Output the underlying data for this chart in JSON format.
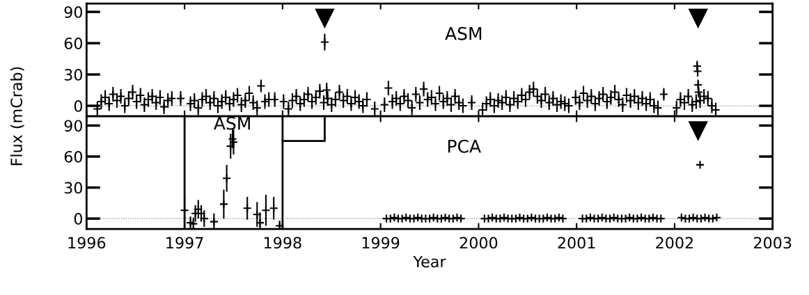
{
  "chart_data": [
    {
      "type": "scatter",
      "title": "ASM",
      "ylabel": "Flux (mCrab)",
      "xlim": [
        1996,
        2003
      ],
      "xticks": [
        1996,
        1997,
        1998,
        1999,
        2000,
        2001,
        2002,
        2003
      ],
      "ylim": [
        -10,
        98
      ],
      "yticks": [
        0,
        30,
        60,
        90
      ],
      "tick_labels": "y",
      "grid": false,
      "legend": false,
      "ref_lines": [
        {
          "axis": "y",
          "value": 0,
          "line_style": "dotted",
          "color": "#808080"
        }
      ],
      "series": [
        {
          "marker": "cross",
          "color": "#000000",
          "x": [
            1996.11,
            1996.15,
            1996.19,
            1996.23,
            1996.27,
            1996.31,
            1996.35,
            1996.39,
            1996.43,
            1996.47,
            1996.51,
            1996.55,
            1996.59,
            1996.63,
            1996.67,
            1996.71,
            1996.75,
            1996.79,
            1996.83,
            1996.87,
            1996.96,
            1997.06,
            1997.1,
            1997.14,
            1997.18,
            1997.22,
            1997.26,
            1997.3,
            1997.34,
            1997.38,
            1997.42,
            1997.46,
            1997.5,
            1997.54,
            1997.58,
            1997.62,
            1997.66,
            1997.7,
            1997.74,
            1997.78,
            1997.82,
            1997.86,
            1997.92,
            1998.01,
            1998.06,
            1998.1,
            1998.14,
            1998.18,
            1998.22,
            1998.26,
            1998.3,
            1998.34,
            1998.38,
            1998.42,
            1998.43,
            1998.45,
            1998.46,
            1998.5,
            1998.54,
            1998.58,
            1998.62,
            1998.66,
            1998.7,
            1998.74,
            1998.78,
            1998.82,
            1998.86,
            1998.94,
            1999.04,
            1999.08,
            1999.12,
            1999.16,
            1999.2,
            1999.24,
            1999.28,
            1999.32,
            1999.36,
            1999.4,
            1999.44,
            1999.48,
            1999.52,
            1999.56,
            1999.6,
            1999.64,
            1999.68,
            1999.72,
            1999.76,
            1999.8,
            1999.84,
            1999.93,
            2000.04,
            2000.08,
            2000.12,
            2000.16,
            2000.2,
            2000.24,
            2000.28,
            2000.32,
            2000.36,
            2000.4,
            2000.44,
            2000.48,
            2000.52,
            2000.56,
            2000.6,
            2000.64,
            2000.68,
            2000.72,
            2000.76,
            2000.8,
            2000.84,
            2000.88,
            2000.92,
            2000.99,
            2001.03,
            2001.07,
            2001.11,
            2001.15,
            2001.19,
            2001.23,
            2001.27,
            2001.31,
            2001.35,
            2001.39,
            2001.43,
            2001.47,
            2001.51,
            2001.55,
            2001.59,
            2001.63,
            2001.67,
            2001.71,
            2001.75,
            2001.79,
            2001.83,
            2001.89,
            2002.02,
            2002.06,
            2002.1,
            2002.14,
            2002.18,
            2002.22,
            2002.23,
            2002.235,
            2002.24,
            2002.245,
            2002.26,
            2002.3,
            2002.34,
            2002.38,
            2002.42
          ],
          "values": [
            -3,
            4,
            8,
            2,
            11,
            5,
            9,
            0,
            7,
            13,
            4,
            10,
            1,
            6,
            9,
            3,
            8,
            -1,
            5,
            7,
            7,
            2,
            5,
            -2,
            6,
            9,
            3,
            7,
            0,
            4,
            8,
            2,
            6,
            10,
            1,
            5,
            12,
            3,
            -2,
            19,
            4,
            6,
            6,
            4,
            -3,
            5,
            9,
            2,
            6,
            11,
            4,
            8,
            14,
            3,
            61,
            15,
            7,
            1,
            6,
            13,
            5,
            9,
            2,
            8,
            4,
            0,
            6,
            -3,
            1,
            17,
            4,
            7,
            2,
            9,
            5,
            -2,
            11,
            3,
            16,
            6,
            8,
            2,
            12,
            4,
            7,
            1,
            9,
            3,
            0,
            3,
            -4,
            2,
            6,
            0,
            5,
            3,
            8,
            1,
            7,
            4,
            10,
            6,
            13,
            16,
            9,
            5,
            11,
            3,
            7,
            1,
            4,
            2,
            0,
            8,
            3,
            12,
            5,
            9,
            2,
            7,
            11,
            4,
            8,
            13,
            6,
            1,
            10,
            5,
            9,
            3,
            7,
            2,
            6,
            0,
            -2,
            11,
            -2,
            6,
            3,
            9,
            1,
            4,
            38,
            33,
            20,
            13,
            5,
            9,
            7,
            0,
            -4
          ],
          "errors": [
            7,
            7,
            7,
            7,
            7,
            7,
            7,
            7,
            7,
            7,
            7,
            7,
            7,
            7,
            7,
            7,
            7,
            7,
            7,
            7,
            7,
            7,
            7,
            7,
            7,
            7,
            7,
            7,
            7,
            7,
            7,
            7,
            7,
            7,
            7,
            7,
            7,
            7,
            7,
            6,
            7,
            7,
            7,
            7,
            7,
            7,
            7,
            7,
            7,
            7,
            7,
            7,
            7,
            7,
            8,
            7,
            7,
            7,
            7,
            7,
            7,
            7,
            7,
            7,
            7,
            7,
            7,
            7,
            7,
            7,
            7,
            7,
            7,
            7,
            7,
            7,
            7,
            7,
            7,
            7,
            7,
            7,
            7,
            7,
            7,
            7,
            7,
            7,
            7,
            7,
            7,
            7,
            7,
            7,
            7,
            7,
            7,
            7,
            7,
            7,
            7,
            7,
            7,
            7,
            7,
            7,
            7,
            7,
            7,
            7,
            7,
            7,
            7,
            7,
            7,
            7,
            7,
            7,
            7,
            7,
            7,
            7,
            7,
            7,
            7,
            7,
            7,
            7,
            7,
            7,
            7,
            7,
            7,
            7,
            7,
            6,
            7,
            7,
            7,
            7,
            7,
            7,
            5,
            5,
            5,
            5,
            7,
            7,
            7,
            7,
            7
          ]
        },
        {
          "marker": "triangle",
          "color": "#000000",
          "x": [
            1998.43,
            2002.24
          ],
          "values": [
            84,
            84
          ]
        }
      ]
    },
    {
      "type": "scatter",
      "title": "PCA",
      "xlabel": "Year",
      "xlim": [
        1996,
        2003
      ],
      "xticks": [
        1996,
        1997,
        1998,
        1999,
        2000,
        2001,
        2002,
        2003
      ],
      "ylim": [
        -10,
        99
      ],
      "yticks": [
        0,
        30,
        60,
        90
      ],
      "grid": false,
      "legend": false,
      "ref_lines": [
        {
          "axis": "y",
          "value": 0,
          "line_style": "dotted",
          "color": "#808080"
        },
        {
          "axis": "x",
          "value": 1997,
          "color": "#000000",
          "line_style": "solid"
        },
        {
          "axis": "x",
          "value": 1998,
          "color": "#000000",
          "line_style": "solid"
        }
      ],
      "series": [
        {
          "marker": "cross",
          "color": "#000000",
          "x": [
            1999.06,
            1999.1,
            1999.14,
            1999.18,
            1999.22,
            1999.26,
            1999.3,
            1999.34,
            1999.38,
            1999.42,
            1999.46,
            1999.5,
            1999.54,
            1999.58,
            1999.62,
            1999.66,
            1999.7,
            1999.74,
            1999.78,
            1999.82,
            2000.06,
            2000.1,
            2000.14,
            2000.18,
            2000.22,
            2000.26,
            2000.3,
            2000.34,
            2000.38,
            2000.42,
            2000.46,
            2000.5,
            2000.54,
            2000.58,
            2000.62,
            2000.66,
            2000.7,
            2000.74,
            2000.78,
            2000.82,
            2000.86,
            2001.06,
            2001.1,
            2001.14,
            2001.18,
            2001.22,
            2001.26,
            2001.3,
            2001.34,
            2001.38,
            2001.42,
            2001.46,
            2001.5,
            2001.54,
            2001.58,
            2001.62,
            2001.66,
            2001.7,
            2001.74,
            2001.78,
            2001.82,
            2001.86,
            2002.07,
            2002.11,
            2002.15,
            2002.19,
            2002.23,
            2002.26,
            2002.27,
            2002.31,
            2002.35,
            2002.39,
            2002.43
          ],
          "values": [
            0,
            0,
            1,
            0,
            0,
            1,
            0,
            0,
            1,
            0,
            0,
            0,
            1,
            0,
            0,
            1,
            0,
            0,
            1,
            0,
            0,
            0,
            1,
            0,
            0,
            1,
            0,
            0,
            0,
            1,
            0,
            0,
            1,
            0,
            0,
            0,
            1,
            0,
            0,
            1,
            0,
            0,
            0,
            1,
            0,
            0,
            1,
            0,
            0,
            1,
            0,
            0,
            0,
            1,
            0,
            0,
            1,
            0,
            0,
            1,
            0,
            0,
            1,
            0,
            0,
            1,
            0,
            52,
            0,
            1,
            0,
            0,
            1
          ]
        },
        {
          "marker": "triangle",
          "color": "#000000",
          "x": [
            2002.24
          ],
          "values": [
            85
          ]
        },
        {
          "marker": "cross",
          "color": "#000000",
          "name": "ASM",
          "x": [
            1997.0,
            1997.06,
            1997.09,
            1997.11,
            1997.14,
            1997.17,
            1997.2,
            1997.3,
            1997.4,
            1997.43,
            1997.47,
            1997.49,
            1997.5,
            1997.64,
            1997.74,
            1997.77,
            1997.83,
            1997.91,
            1997.97
          ],
          "values": [
            8,
            -4,
            -5,
            5,
            9,
            5,
            0,
            -3,
            14,
            39,
            70,
            77,
            74,
            10,
            4,
            -4,
            8,
            10,
            -7
          ],
          "errors": [
            13,
            6,
            6,
            8,
            9,
            8,
            8,
            8,
            14,
            13,
            12,
            9,
            12,
            11,
            12,
            10,
            15,
            11,
            5
          ]
        },
        {
          "type": "line",
          "color": "#000000",
          "x": [
            1998,
            1998.43,
            1998.43
          ],
          "values": [
            75,
            75,
            99
          ]
        }
      ]
    }
  ]
}
